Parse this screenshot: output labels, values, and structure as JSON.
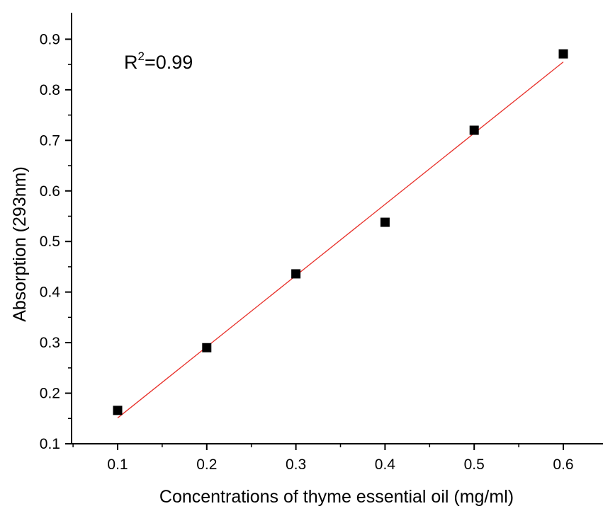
{
  "chart_data": {
    "type": "scatter",
    "title": "",
    "xlabel": "Concentrations of thyme essential oil (mg/ml)",
    "ylabel": "Absorption (293nm)",
    "xlim": [
      0.05,
      0.65
    ],
    "ylim": [
      0.1,
      0.95
    ],
    "xticks": [
      "0.1",
      "0.2",
      "0.3",
      "0.4",
      "0.5",
      "0.6"
    ],
    "yticks": [
      "0.1",
      "0.2",
      "0.3",
      "0.4",
      "0.5",
      "0.6",
      "0.7",
      "0.8",
      "0.9"
    ],
    "grid": false,
    "series": [
      {
        "x": [
          0.1,
          0.2,
          0.3,
          0.4,
          0.5,
          0.6
        ],
        "y": [
          0.166,
          0.29,
          0.436,
          0.538,
          0.72,
          0.871
        ],
        "marker": "square",
        "color": "#000000"
      }
    ],
    "fit_line": {
      "x": [
        0.1,
        0.6
      ],
      "y": [
        0.151,
        0.855
      ],
      "color": "#e8302a"
    },
    "annotation": {
      "base": "R",
      "superscript": "2",
      "text": "=0.99"
    }
  }
}
